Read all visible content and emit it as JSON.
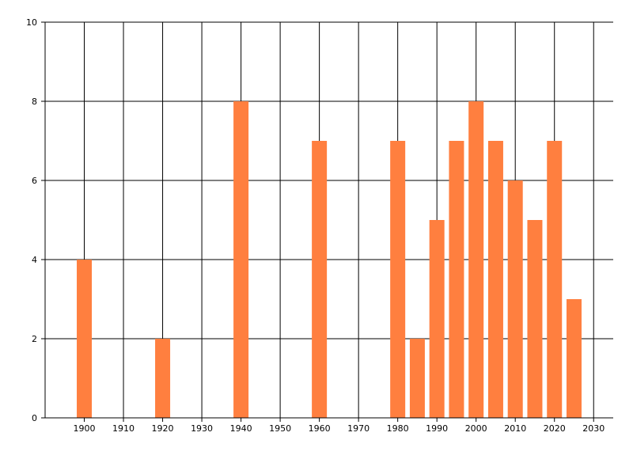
{
  "chart_data": {
    "type": "bar",
    "x": [
      1900,
      1920,
      1940,
      1960,
      1980,
      1985,
      1990,
      1995,
      2000,
      2005,
      2010,
      2015,
      2020,
      2025
    ],
    "values": [
      4,
      2,
      8,
      7,
      7,
      2,
      5,
      7,
      8,
      7,
      6,
      5,
      7,
      3
    ],
    "xlim": [
      1890,
      2035
    ],
    "ylim": [
      0,
      10
    ],
    "x_ticks": [
      "1900",
      "1910",
      "1920",
      "1930",
      "1940",
      "1950",
      "1960",
      "1970",
      "1980",
      "1990",
      "2000",
      "2010",
      "2020",
      "2030"
    ],
    "y_ticks": [
      "0",
      "2",
      "4",
      "6",
      "8",
      "10"
    ],
    "grid": true,
    "title": "",
    "xlabel": "",
    "ylabel": "",
    "bar_color": "#ff7f3f",
    "grid_color": "#000000"
  }
}
